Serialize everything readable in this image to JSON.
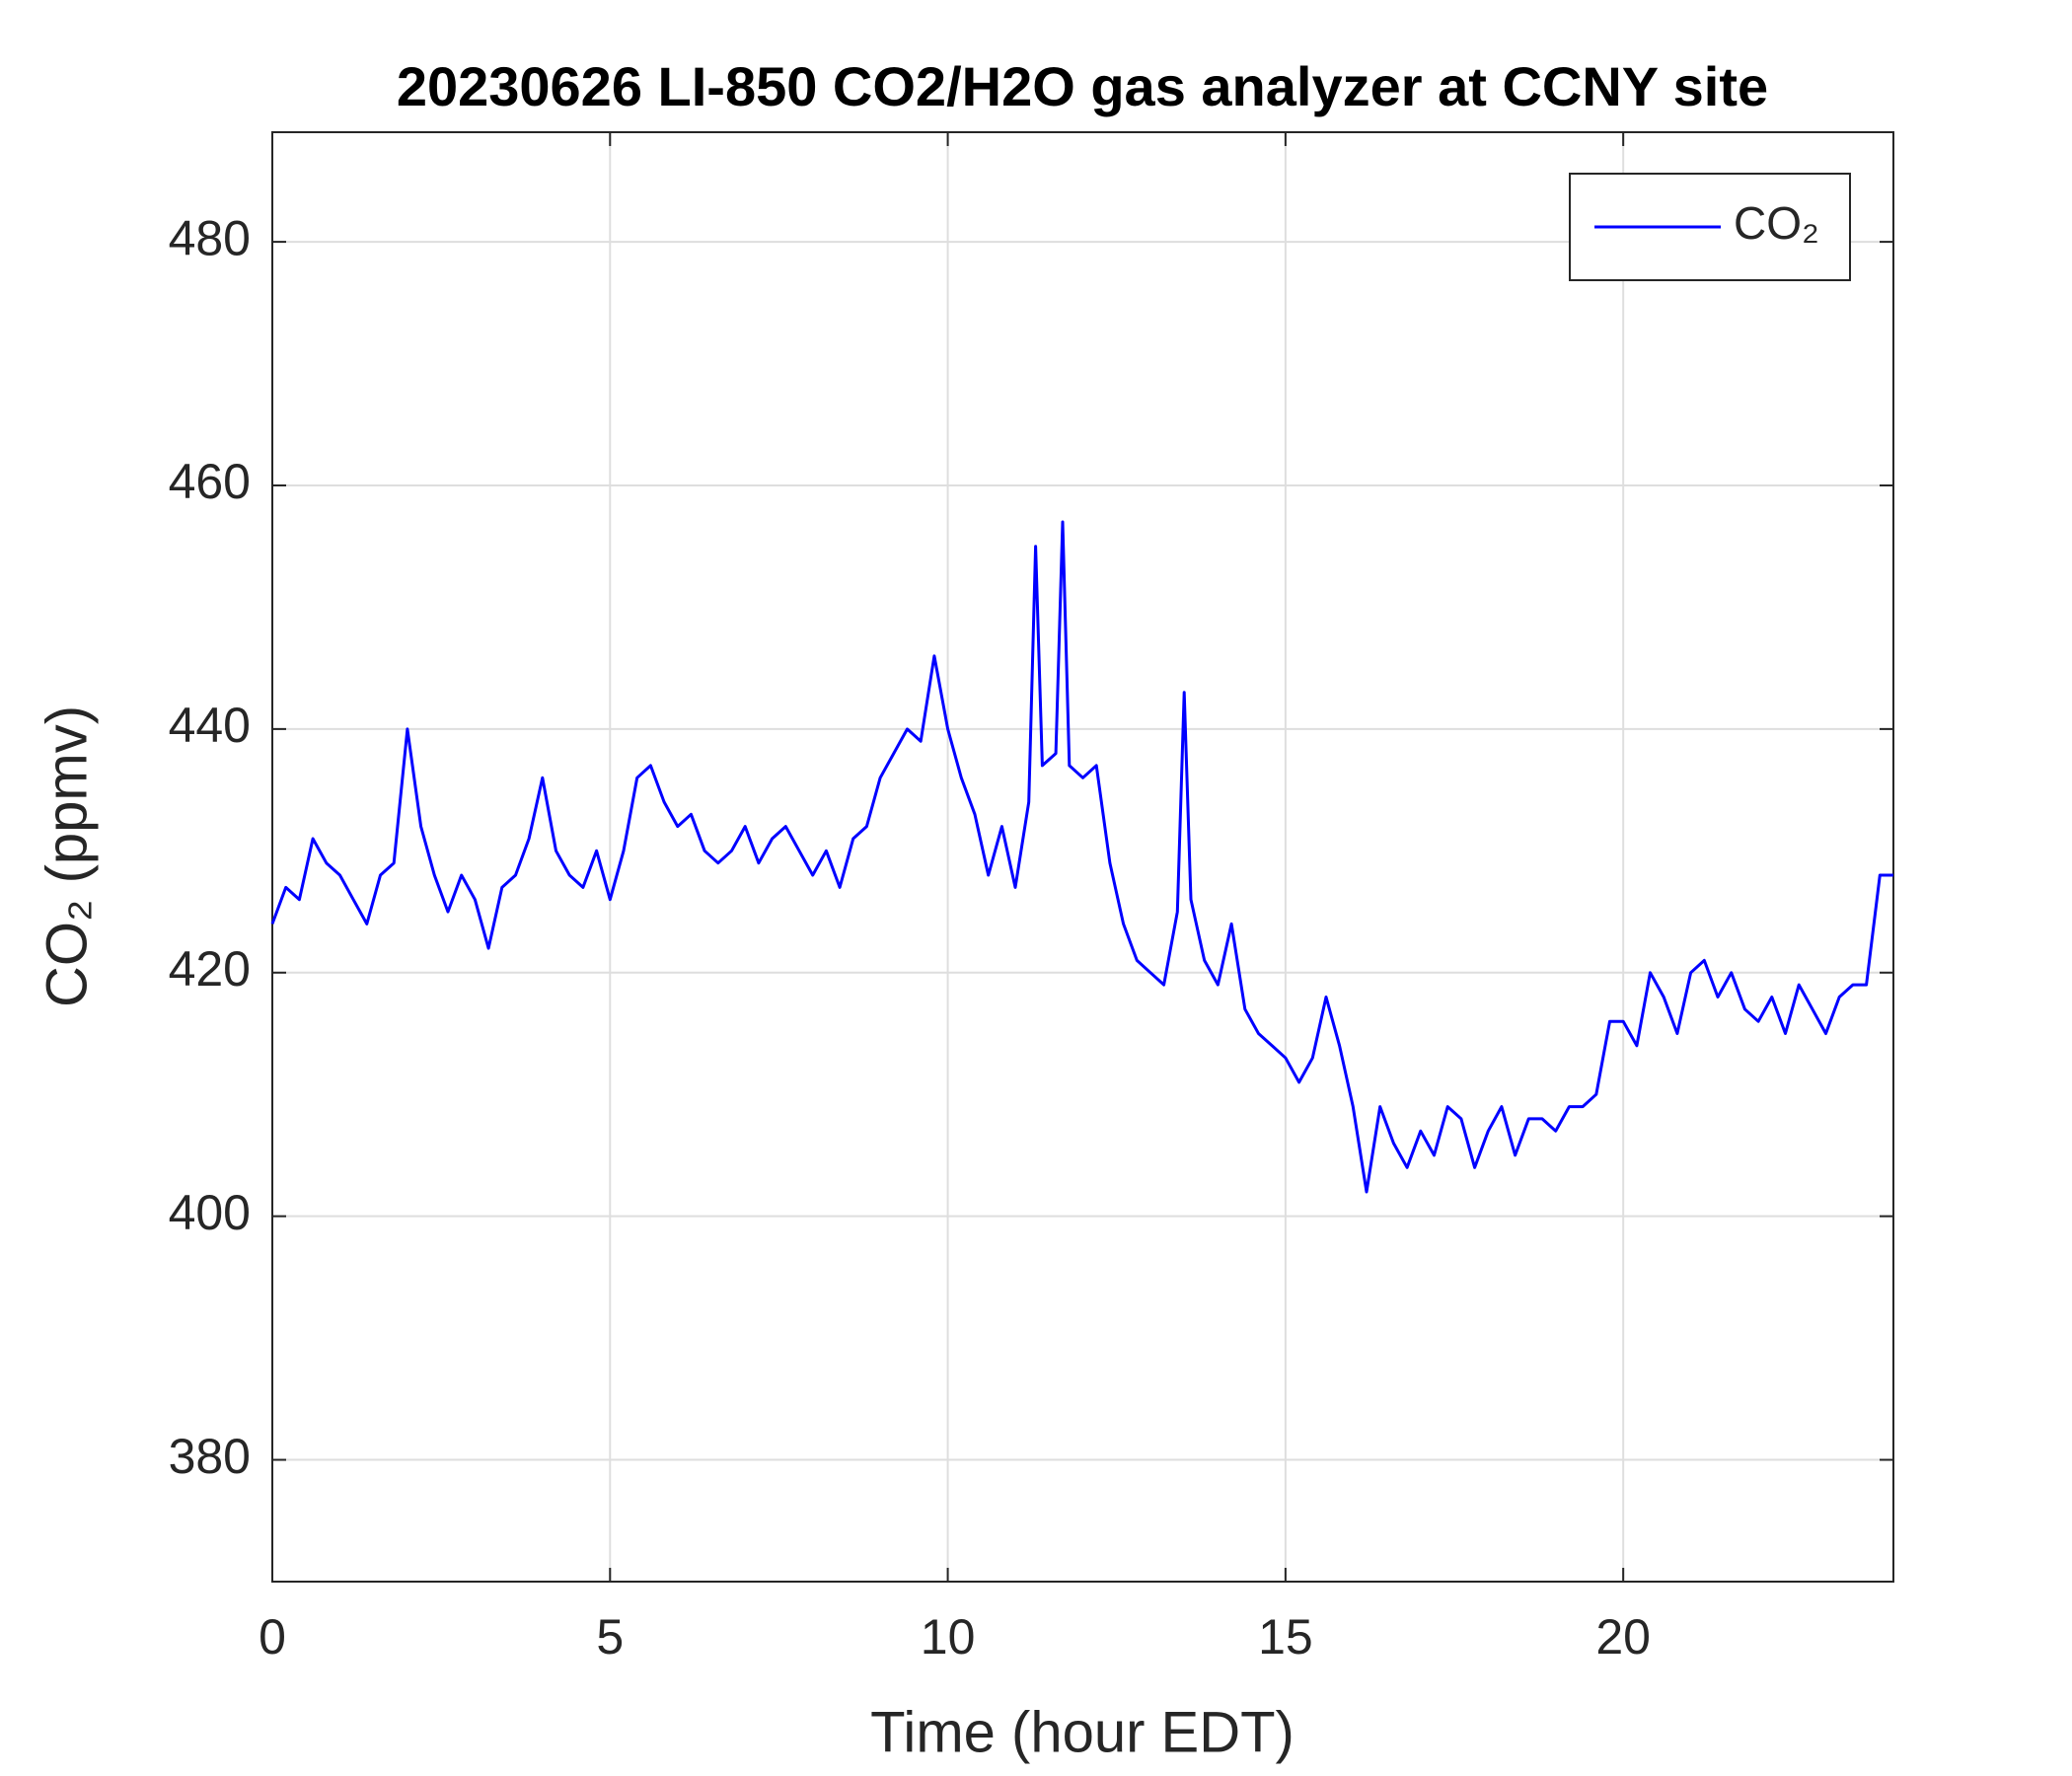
{
  "chart_data": {
    "type": "line",
    "title": "20230626 LI-850 CO2/H2O gas analyzer at CCNY site",
    "x_label": "Time (hour EDT)",
    "y_label": "CO₂ (ppmv)",
    "x": [
      0.0,
      0.2,
      0.4,
      0.6,
      0.8,
      1.0,
      1.2,
      1.4,
      1.6,
      1.8,
      2.0,
      2.2,
      2.4,
      2.6,
      2.8,
      3.0,
      3.2,
      3.4,
      3.6,
      3.8,
      4.0,
      4.2,
      4.4,
      4.6,
      4.8,
      5.0,
      5.2,
      5.4,
      5.6,
      5.8,
      6.0,
      6.2,
      6.4,
      6.6,
      6.8,
      7.0,
      7.2,
      7.4,
      7.6,
      7.8,
      8.0,
      8.2,
      8.4,
      8.6,
      8.8,
      9.0,
      9.2,
      9.4,
      9.6,
      9.8,
      10.0,
      10.2,
      10.4,
      10.6,
      10.8,
      11.0,
      11.2,
      11.3,
      11.4,
      11.6,
      11.7,
      11.8,
      12.0,
      12.2,
      12.4,
      12.6,
      12.8,
      13.0,
      13.2,
      13.4,
      13.5,
      13.6,
      13.8,
      14.0,
      14.2,
      14.4,
      14.6,
      14.8,
      15.0,
      15.2,
      15.4,
      15.6,
      15.8,
      16.0,
      16.2,
      16.4,
      16.6,
      16.8,
      17.0,
      17.2,
      17.4,
      17.6,
      17.8,
      18.0,
      18.2,
      18.4,
      18.6,
      18.8,
      19.0,
      19.2,
      19.4,
      19.6,
      19.8,
      20.0,
      20.2,
      20.4,
      20.6,
      20.8,
      21.0,
      21.2,
      21.4,
      21.6,
      21.8,
      22.0,
      22.2,
      22.4,
      22.6,
      22.8,
      23.0,
      23.2,
      23.4,
      23.6,
      23.8,
      24.0
    ],
    "series": [
      {
        "name": "CO₂",
        "color": "#0000ff",
        "values": [
          424,
          427,
          426,
          431,
          429,
          428,
          426,
          424,
          428,
          429,
          440,
          432,
          428,
          425,
          428,
          426,
          422,
          427,
          428,
          431,
          436,
          430,
          428,
          427,
          430,
          426,
          430,
          436,
          437,
          434,
          432,
          433,
          430,
          429,
          430,
          432,
          429,
          431,
          432,
          430,
          428,
          430,
          427,
          431,
          432,
          436,
          438,
          440,
          439,
          446,
          440,
          436,
          433,
          428,
          432,
          427,
          434,
          455,
          437,
          438,
          457,
          437,
          436,
          437,
          429,
          424,
          421,
          420,
          419,
          425,
          443,
          426,
          421,
          419,
          424,
          417,
          415,
          414,
          413,
          411,
          413,
          418,
          414,
          409,
          402,
          409,
          406,
          404,
          407,
          405,
          409,
          408,
          404,
          407,
          409,
          405,
          408,
          408,
          407,
          409,
          409,
          410,
          416,
          416,
          414,
          420,
          418,
          415,
          420,
          421,
          418,
          420,
          417,
          416,
          418,
          415,
          419,
          417,
          415,
          418,
          419,
          419,
          428,
          428
        ]
      }
    ],
    "xlim": [
      0,
      24
    ],
    "ylim": [
      370,
      489
    ],
    "xticks": [
      0,
      5,
      10,
      15,
      20
    ],
    "yticks": [
      380,
      400,
      420,
      440,
      460,
      480
    ],
    "grid": true,
    "legend": "upper right"
  }
}
